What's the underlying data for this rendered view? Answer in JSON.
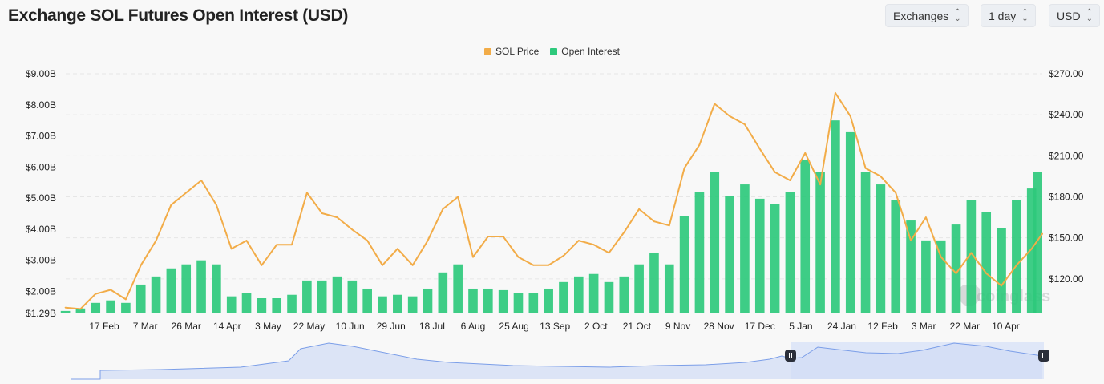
{
  "header": {
    "title": "Exchange SOL Futures Open Interest (USD)",
    "controls": [
      {
        "label": "Exchanges",
        "icon": "chevron-up-down-icon"
      },
      {
        "label": "1 day",
        "icon": "chevron-up-down-icon"
      },
      {
        "label": "USD",
        "icon": "chevron-up-down-icon"
      }
    ]
  },
  "watermark": "coinglass",
  "colors": {
    "price": "#f2ac48",
    "open_interest": "#2ec97c",
    "navigator_line": "#7b9ee8",
    "navigator_fill": "#d0dcf5"
  },
  "chart_data": {
    "type": "bar+line",
    "title": "Exchange SOL Futures Open Interest (USD)",
    "legend_position": "top-center",
    "grid": true,
    "x_tick_labels": [
      "17 Feb",
      "7 Mar",
      "26 Mar",
      "14 Apr",
      "3 May",
      "22 May",
      "10 Jun",
      "29 Jun",
      "18 Jul",
      "6 Aug",
      "25 Aug",
      "13 Sep",
      "2 Oct",
      "21 Oct",
      "9 Nov",
      "28 Nov",
      "17 Dec",
      "5 Jan",
      "24 Jan",
      "12 Feb",
      "3 Mar",
      "22 Mar",
      "10 Apr"
    ],
    "y_left": {
      "ticks": [
        "$1.29B",
        "$2.00B",
        "$3.00B",
        "$4.00B",
        "$5.00B",
        "$6.00B",
        "$7.00B",
        "$8.00B",
        "$9.00B"
      ],
      "range": [
        1.29,
        9.0
      ],
      "unit": "USD billions"
    },
    "y_right": {
      "ticks": [
        "$120.00",
        "$150.00",
        "$180.00",
        "$210.00",
        "$240.00",
        "$270.00"
      ],
      "range": [
        94.7,
        270
      ]
    },
    "x": [
      "2024-01-30",
      "2024-02-06",
      "2024-02-13",
      "2024-02-20",
      "2024-02-27",
      "2024-03-05",
      "2024-03-12",
      "2024-03-19",
      "2024-03-26",
      "2024-04-02",
      "2024-04-09",
      "2024-04-16",
      "2024-04-23",
      "2024-04-30",
      "2024-05-07",
      "2024-05-14",
      "2024-05-21",
      "2024-05-28",
      "2024-06-04",
      "2024-06-11",
      "2024-06-18",
      "2024-06-25",
      "2024-07-02",
      "2024-07-09",
      "2024-07-16",
      "2024-07-23",
      "2024-07-30",
      "2024-08-06",
      "2024-08-13",
      "2024-08-20",
      "2024-08-27",
      "2024-09-03",
      "2024-09-10",
      "2024-09-17",
      "2024-09-24",
      "2024-10-01",
      "2024-10-08",
      "2024-10-15",
      "2024-10-22",
      "2024-10-29",
      "2024-11-05",
      "2024-11-12",
      "2024-11-19",
      "2024-11-26",
      "2024-12-03",
      "2024-12-10",
      "2024-12-17",
      "2024-12-24",
      "2024-12-31",
      "2025-01-07",
      "2025-01-14",
      "2025-01-21",
      "2025-01-28",
      "2025-02-04",
      "2025-02-11",
      "2025-02-18",
      "2025-02-25",
      "2025-03-04",
      "2025-03-11",
      "2025-03-18",
      "2025-03-25",
      "2025-04-01",
      "2025-04-08",
      "2025-04-15",
      "2025-04-22",
      "2025-04-27"
    ],
    "series": [
      {
        "name": "SOL Price",
        "type": "line",
        "axis": "right",
        "values": [
          99,
          98,
          109,
          112,
          105,
          130,
          148,
          174,
          183,
          192,
          174,
          142,
          148,
          130,
          145,
          145,
          183,
          168,
          165,
          156,
          148,
          130,
          142,
          130,
          148,
          171,
          180,
          136,
          151,
          151,
          136,
          130,
          130,
          137,
          148,
          145,
          139,
          154,
          171,
          162,
          159,
          201,
          218,
          248,
          239,
          233,
          215,
          198,
          192,
          212,
          189,
          256,
          239,
          201,
          195,
          183,
          148,
          165,
          136,
          124,
          139,
          124,
          115,
          130,
          142,
          153
        ]
      },
      {
        "name": "Open Interest",
        "type": "bar",
        "axis": "left",
        "values": [
          1.37,
          1.45,
          1.63,
          1.71,
          1.63,
          2.22,
          2.48,
          2.74,
          2.87,
          3.0,
          2.87,
          1.84,
          1.96,
          1.78,
          1.78,
          1.89,
          2.35,
          2.35,
          2.48,
          2.35,
          2.09,
          1.84,
          1.89,
          1.84,
          2.09,
          2.61,
          2.87,
          2.09,
          2.09,
          2.04,
          1.96,
          1.96,
          2.09,
          2.3,
          2.48,
          2.56,
          2.3,
          2.48,
          2.87,
          3.25,
          2.87,
          4.41,
          5.19,
          5.83,
          5.06,
          5.44,
          4.98,
          4.8,
          5.19,
          6.22,
          5.83,
          7.5,
          7.12,
          5.83,
          5.44,
          4.93,
          4.28,
          3.64,
          3.64,
          4.15,
          4.93,
          4.54,
          4.03,
          4.93,
          5.31,
          5.83
        ]
      }
    ]
  }
}
